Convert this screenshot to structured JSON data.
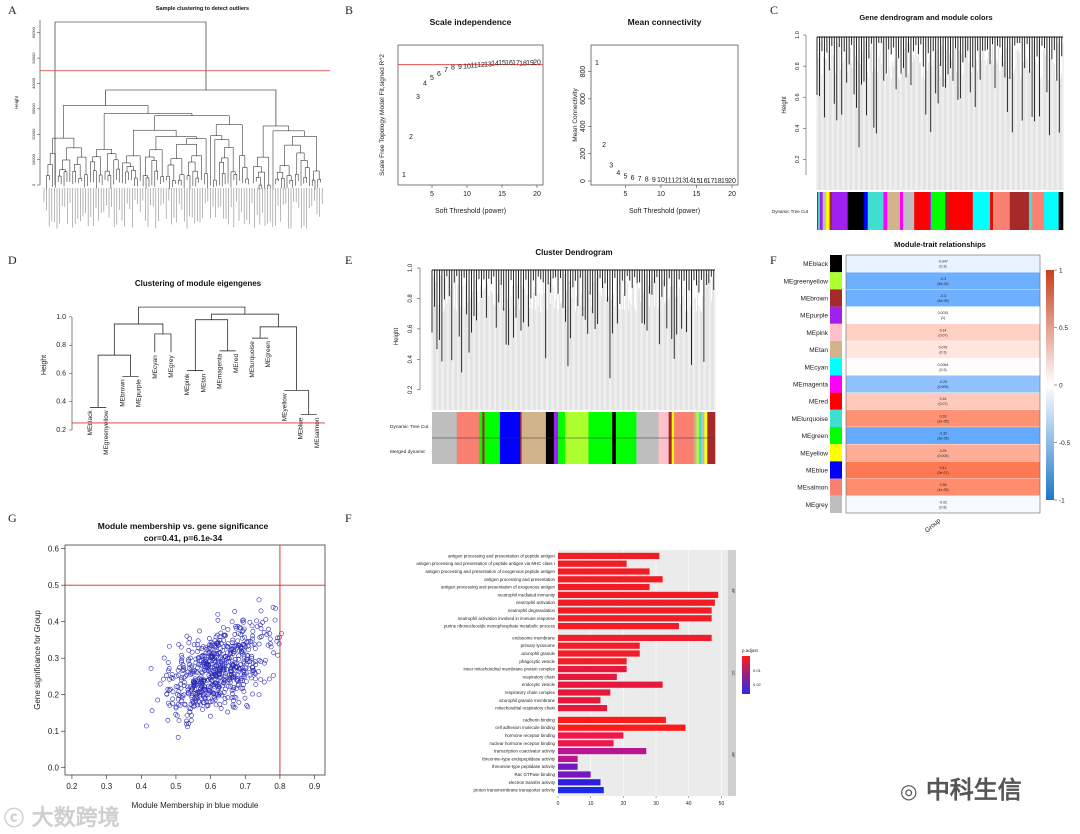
{
  "panel_letters": [
    "A",
    "B",
    "C",
    "D",
    "E",
    "F",
    "G",
    "F"
  ],
  "chart_data": [
    {
      "id": "A",
      "type": "dendrogram",
      "title": "Sample clustering to detect outliers",
      "ylabel": "Height",
      "yticks": [
        0,
        10000,
        20000,
        30000,
        40000,
        50000,
        60000
      ],
      "ylim": [
        0,
        65000
      ],
      "cut_height": 45000
    },
    {
      "id": "B1",
      "type": "scatter",
      "title": "Scale independence",
      "xlabel": "Soft Threshold (power)",
      "ylabel": "Scale Free Topology Model Fit,signed R^2",
      "xticks": [
        5,
        10,
        15,
        20
      ],
      "xlim": [
        1,
        20
      ],
      "ylim": [
        0.0,
        0.95
      ],
      "x": [
        1,
        2,
        3,
        4,
        5,
        6,
        7,
        8,
        9,
        10,
        11,
        12,
        13,
        14,
        15,
        16,
        17,
        18,
        19,
        20
      ],
      "y": [
        0.05,
        0.33,
        0.62,
        0.72,
        0.76,
        0.79,
        0.82,
        0.835,
        0.84,
        0.845,
        0.85,
        0.855,
        0.86,
        0.865,
        0.87,
        0.87,
        0.87,
        0.865,
        0.87,
        0.875
      ],
      "cut_line": 0.85
    },
    {
      "id": "B2",
      "type": "scatter",
      "title": "Mean connectivity",
      "xlabel": "Soft Threshold (power)",
      "ylabel": "Mean Connectivity",
      "xticks": [
        5,
        10,
        15,
        20
      ],
      "xlim": [
        1,
        20
      ],
      "yticks": [
        0,
        200,
        400,
        600,
        800
      ],
      "ylim": [
        0,
        950
      ],
      "x": [
        1,
        2,
        3,
        4,
        5,
        6,
        7,
        8,
        9,
        10,
        11,
        12,
        13,
        14,
        15,
        16,
        17,
        18,
        19,
        20
      ],
      "y": [
        870,
        270,
        120,
        65,
        40,
        28,
        22,
        18,
        15,
        13,
        12,
        11,
        10,
        10,
        9,
        9,
        8,
        8,
        8,
        7
      ]
    },
    {
      "id": "C",
      "type": "dendrogram",
      "title": "Gene dendrogram and module colors",
      "ylabel": "Height",
      "yticks": [
        0.2,
        0.4,
        0.6,
        0.8,
        1.0
      ],
      "color_bar_label": "Dynamic Tree Cut"
    },
    {
      "id": "D",
      "type": "dendrogram",
      "title": "Clustering of module eigengenes",
      "ylabel": "Height",
      "yticks": [
        0.2,
        0.4,
        0.6,
        0.8,
        1.0
      ],
      "ylim": [
        0.2,
        1.12
      ],
      "cut_height": 0.25,
      "leaves": [
        "MEblack",
        "MEgreenyellow",
        "MEbrown",
        "MEpurple",
        "MEcyan",
        "MEgrey",
        "MEpink",
        "MEtan",
        "MEmagenta",
        "MEred",
        "MEturquoise",
        "MEgreen",
        "MEyellow",
        "MEblue",
        "MEsalmon"
      ]
    },
    {
      "id": "E",
      "type": "dendrogram",
      "title": "Cluster Dendrogram",
      "ylabel": "Height",
      "yticks": [
        0.2,
        0.4,
        0.6,
        0.8,
        1.0
      ],
      "color_bar_labels": [
        "Dynamic Tree Cut",
        "Merged dynamic"
      ]
    },
    {
      "id": "F1",
      "type": "heatmap",
      "title": "Module-trait relationships",
      "xlabel": "Group",
      "colorbar_ticks": [
        1,
        0.5,
        0,
        -0.5,
        -1
      ],
      "rows": [
        {
          "name": "MEblack",
          "r": "-0.047",
          "p": "(0.3)",
          "color": "#000000",
          "v": -0.047
        },
        {
          "name": "MEgreenyellow",
          "r": "-0.3",
          "p": "(5e-09)",
          "color": "#adff2f",
          "v": -0.3
        },
        {
          "name": "MEbrown",
          "r": "-0.3",
          "p": "(5e-09)",
          "color": "#a52a2a",
          "v": -0.3
        },
        {
          "name": "MEpurple",
          "r": "0.0031",
          "p": "(1)",
          "color": "#a020f0",
          "v": 0.0031
        },
        {
          "name": "MEpink",
          "r": "0.14",
          "p": "(0.07)",
          "color": "#ffc0cb",
          "v": 0.14
        },
        {
          "name": "MEtan",
          "r": "0.076",
          "p": "(0.3)",
          "color": "#d2b48c",
          "v": 0.076
        },
        {
          "name": "MEcyan",
          "r": "0.0064",
          "p": "(0.9)",
          "color": "#00ffff",
          "v": 0.0064
        },
        {
          "name": "MEmagenta",
          "r": "-0.23",
          "p": "(0.009)",
          "color": "#ff00ff",
          "v": -0.23
        },
        {
          "name": "MEred",
          "r": "0.16",
          "p": "(0.07)",
          "color": "#ff0000",
          "v": 0.16
        },
        {
          "name": "MEturquoise",
          "r": "0.33",
          "p": "(3e-05)",
          "color": "#40e0d0",
          "v": 0.33
        },
        {
          "name": "MEgreen",
          "r": "-0.32",
          "p": "(3e-05)",
          "color": "#00ff00",
          "v": -0.32
        },
        {
          "name": "MEyellow",
          "r": "0.25",
          "p": "(0.003)",
          "color": "#ffff00",
          "v": 0.25
        },
        {
          "name": "MEblue",
          "r": "0.41",
          "p": "(3e-07)",
          "color": "#0000ff",
          "v": 0.41
        },
        {
          "name": "MEsalmon",
          "r": "0.35",
          "p": "(1e-05)",
          "color": "#fa8072",
          "v": 0.35
        },
        {
          "name": "MEgrey",
          "r": "-0.02",
          "p": "(0.8)",
          "color": "#bebebe",
          "v": -0.02
        }
      ]
    },
    {
      "id": "G",
      "type": "scatter",
      "title": "Module membership vs. gene significance",
      "subtitle": "cor=0.41, p=6.1e-34",
      "xlabel": "Module Membership in blue module",
      "ylabel": "Gene significance for Group",
      "xticks": [
        0.2,
        0.3,
        0.4,
        0.5,
        0.6,
        0.7,
        0.8,
        0.9
      ],
      "xlim": [
        0.18,
        0.93
      ],
      "yticks": [
        0.0,
        0.1,
        0.2,
        0.3,
        0.4,
        0.5,
        0.6
      ],
      "ylim": [
        -0.02,
        0.61
      ],
      "vline": 0.8,
      "hline": 0.5,
      "n_points": 650
    },
    {
      "id": "F2",
      "type": "bar",
      "xticks": [
        0,
        10,
        20,
        30,
        40,
        50
      ],
      "xlim": [
        0,
        52
      ],
      "legend_title": "p.adjust",
      "legend_ticks": [
        "0.01",
        "0.02"
      ],
      "groups": [
        {
          "name": "BP",
          "terms": [
            "antigen processing and presentation of peptide antigen",
            "antigen processing and presentation of peptide antigen via MHC class I",
            "antigen processing and presentation of exogenous peptide antigen",
            "antigen processing and presentation",
            "antigen processing and presentation of exogenous antigen",
            "neutrophil mediated immunity",
            "neutrophil activation",
            "neutrophil degranulation",
            "neutrophil activation involved in immune response",
            "purine ribonucleoside monophosphate metabolic process"
          ],
          "values": [
            31,
            21,
            28,
            32,
            28,
            49,
            48,
            47,
            47,
            37
          ]
        },
        {
          "name": "CC",
          "terms": [
            "endosome membrane",
            "primary lysosome",
            "azurophil granule",
            "phagocytic vesicle",
            "inner mitochondrial membrane protein complex",
            "respiratory chain",
            "endocytic vesicle",
            "respiratory chain complex",
            "azurophil granule membrane",
            "mitochondrial respiratory chain"
          ],
          "values": [
            47,
            25,
            25,
            21,
            21,
            18,
            32,
            16,
            13,
            15
          ]
        },
        {
          "name": "MF",
          "terms": [
            "cadherin binding",
            "cell adhesion molecule binding",
            "hormone receptor binding",
            "nuclear hormone receptor binding",
            "transcription coactivator activity",
            "threonine-type endopeptidase activity",
            "threonine-type peptidase activity",
            "Rac GTPase binding",
            "electron transfer activity",
            "proton transmembrane transporter activity"
          ],
          "values": [
            33,
            39,
            20,
            17,
            27,
            6,
            6,
            10,
            13,
            14
          ]
        }
      ]
    }
  ],
  "watermarks": {
    "left": "大数跨境",
    "right": "中科生信"
  }
}
